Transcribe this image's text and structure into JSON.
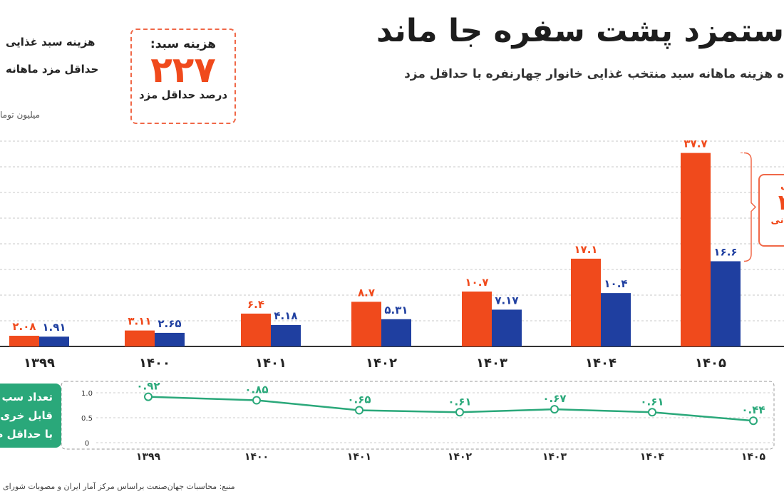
{
  "header": {
    "title": "ستمزد پشت سفره جا ماند",
    "subtitle": "ه هزینه ماهانه سبد منتخب غذایی خانوار چهارنفره با حداقل مزد"
  },
  "legend": {
    "item1": "هزینه سبد غذایی",
    "item2": "حداقل مزد ماهانه",
    "unit": "میلیون توما"
  },
  "highlight_box": {
    "label": "هزینه سبد:",
    "value": "۲۲۷",
    "sub": "درصد حداقل مزد"
  },
  "callout": {
    "line1": "ل",
    "line2": "۲",
    "line3": "ومانی"
  },
  "green_box": {
    "line1": "تعداد سب",
    "line2": "قابل خری",
    "line3": "با حداقل م"
  },
  "source": "منبع: محاسبات جهان‌صنعت براساس مرکز آمار ایران و مصوبات شورای",
  "colors": {
    "food_basket": "#f04a1c",
    "min_wage": "#1f3fa0",
    "ratio_line": "#2aa87a"
  },
  "chart_data": [
    {
      "type": "bar",
      "categories": [
        "۱۳۹۹",
        "۱۴۰۰",
        "۱۴۰۱",
        "۱۴۰۲",
        "۱۴۰۳",
        "۱۴۰۴",
        "۱۴۰۵"
      ],
      "series": [
        {
          "name": "هزینه سبد غذایی",
          "values": [
            2.08,
            3.11,
            6.4,
            8.7,
            10.7,
            17.1,
            37.7
          ],
          "labels": [
            "۲.۰۸",
            "۳.۱۱",
            "۶.۴",
            "۸.۷",
            "۱۰.۷",
            "۱۷.۱",
            "۳۷.۷"
          ]
        },
        {
          "name": "حداقل مزد ماهانه",
          "values": [
            1.91,
            2.65,
            4.18,
            5.31,
            7.17,
            10.4,
            16.6
          ],
          "labels": [
            "۱.۹۱",
            "۲.۶۵",
            "۴.۱۸",
            "۵.۳۱",
            "۷.۱۷",
            "۱۰.۴",
            "۱۶.۶"
          ]
        }
      ],
      "ylim": [
        0,
        40
      ],
      "grid": true
    },
    {
      "type": "line",
      "categories": [
        "۱۳۹۹",
        "۱۴۰۰",
        "۱۴۰۱",
        "۱۴۰۲",
        "۱۴۰۳",
        "۱۴۰۴",
        "۱۴۰۵"
      ],
      "values": [
        0.92,
        0.85,
        0.65,
        0.61,
        0.67,
        0.61,
        0.44
      ],
      "labels": [
        "۰.۹۲",
        "۰.۸۵",
        "۰.۶۵",
        "۰.۶۱",
        "۰.۶۷",
        "۰.۶۱",
        "۰.۴۴"
      ],
      "yticks": [
        "1.0",
        "0.5",
        "0"
      ],
      "ylim": [
        0,
        1.0
      ]
    }
  ]
}
